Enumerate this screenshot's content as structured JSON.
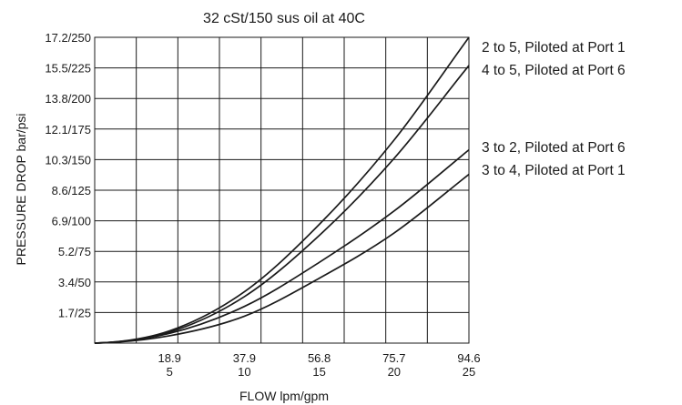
{
  "chart_data": {
    "type": "line",
    "title": "32 cSt/150 sus oil at 40C",
    "xlabel": "FLOW lpm/gpm",
    "ylabel": "PRESSURE DROP bar/psi",
    "x_ticks": [
      {
        "top": "18.9",
        "bottom": "5"
      },
      {
        "top": "37.9",
        "bottom": "10"
      },
      {
        "top": "56.8",
        "bottom": "15"
      },
      {
        "top": "75.7",
        "bottom": "20"
      },
      {
        "top": "94.6",
        "bottom": "25"
      }
    ],
    "y_ticks": [
      "1.7/25",
      "3.4/50",
      "5.2/75",
      "6.9/100",
      "8.6/125",
      "10.3/150",
      "12.1/175",
      "13.8/200",
      "15.5/225",
      "17.2/250"
    ],
    "xlim": [
      0,
      25
    ],
    "ylim": [
      0,
      250
    ],
    "x_unit_primary": "gpm",
    "y_unit_primary": "psi",
    "grid": true,
    "legend_position": "right",
    "series": [
      {
        "name": "2 to 5, Piloted at Port 1",
        "x": [
          0,
          5,
          10,
          15,
          20,
          25
        ],
        "y": [
          0,
          10,
          42,
          97,
          166,
          250
        ]
      },
      {
        "name": "4 to 5, Piloted at Port 6",
        "x": [
          0,
          5,
          10,
          15,
          20,
          25
        ],
        "y": [
          0,
          9,
          38,
          88,
          151,
          227
        ]
      },
      {
        "name": "3 to 2, Piloted at Port 6",
        "x": [
          0,
          5,
          10,
          15,
          20,
          25
        ],
        "y": [
          0,
          8,
          30,
          66,
          108,
          158
        ]
      },
      {
        "name": "3 to 4, Piloted at Port 1",
        "x": [
          0,
          5,
          10,
          15,
          20,
          25
        ],
        "y": [
          0,
          6,
          22,
          53,
          90,
          138
        ]
      }
    ]
  }
}
